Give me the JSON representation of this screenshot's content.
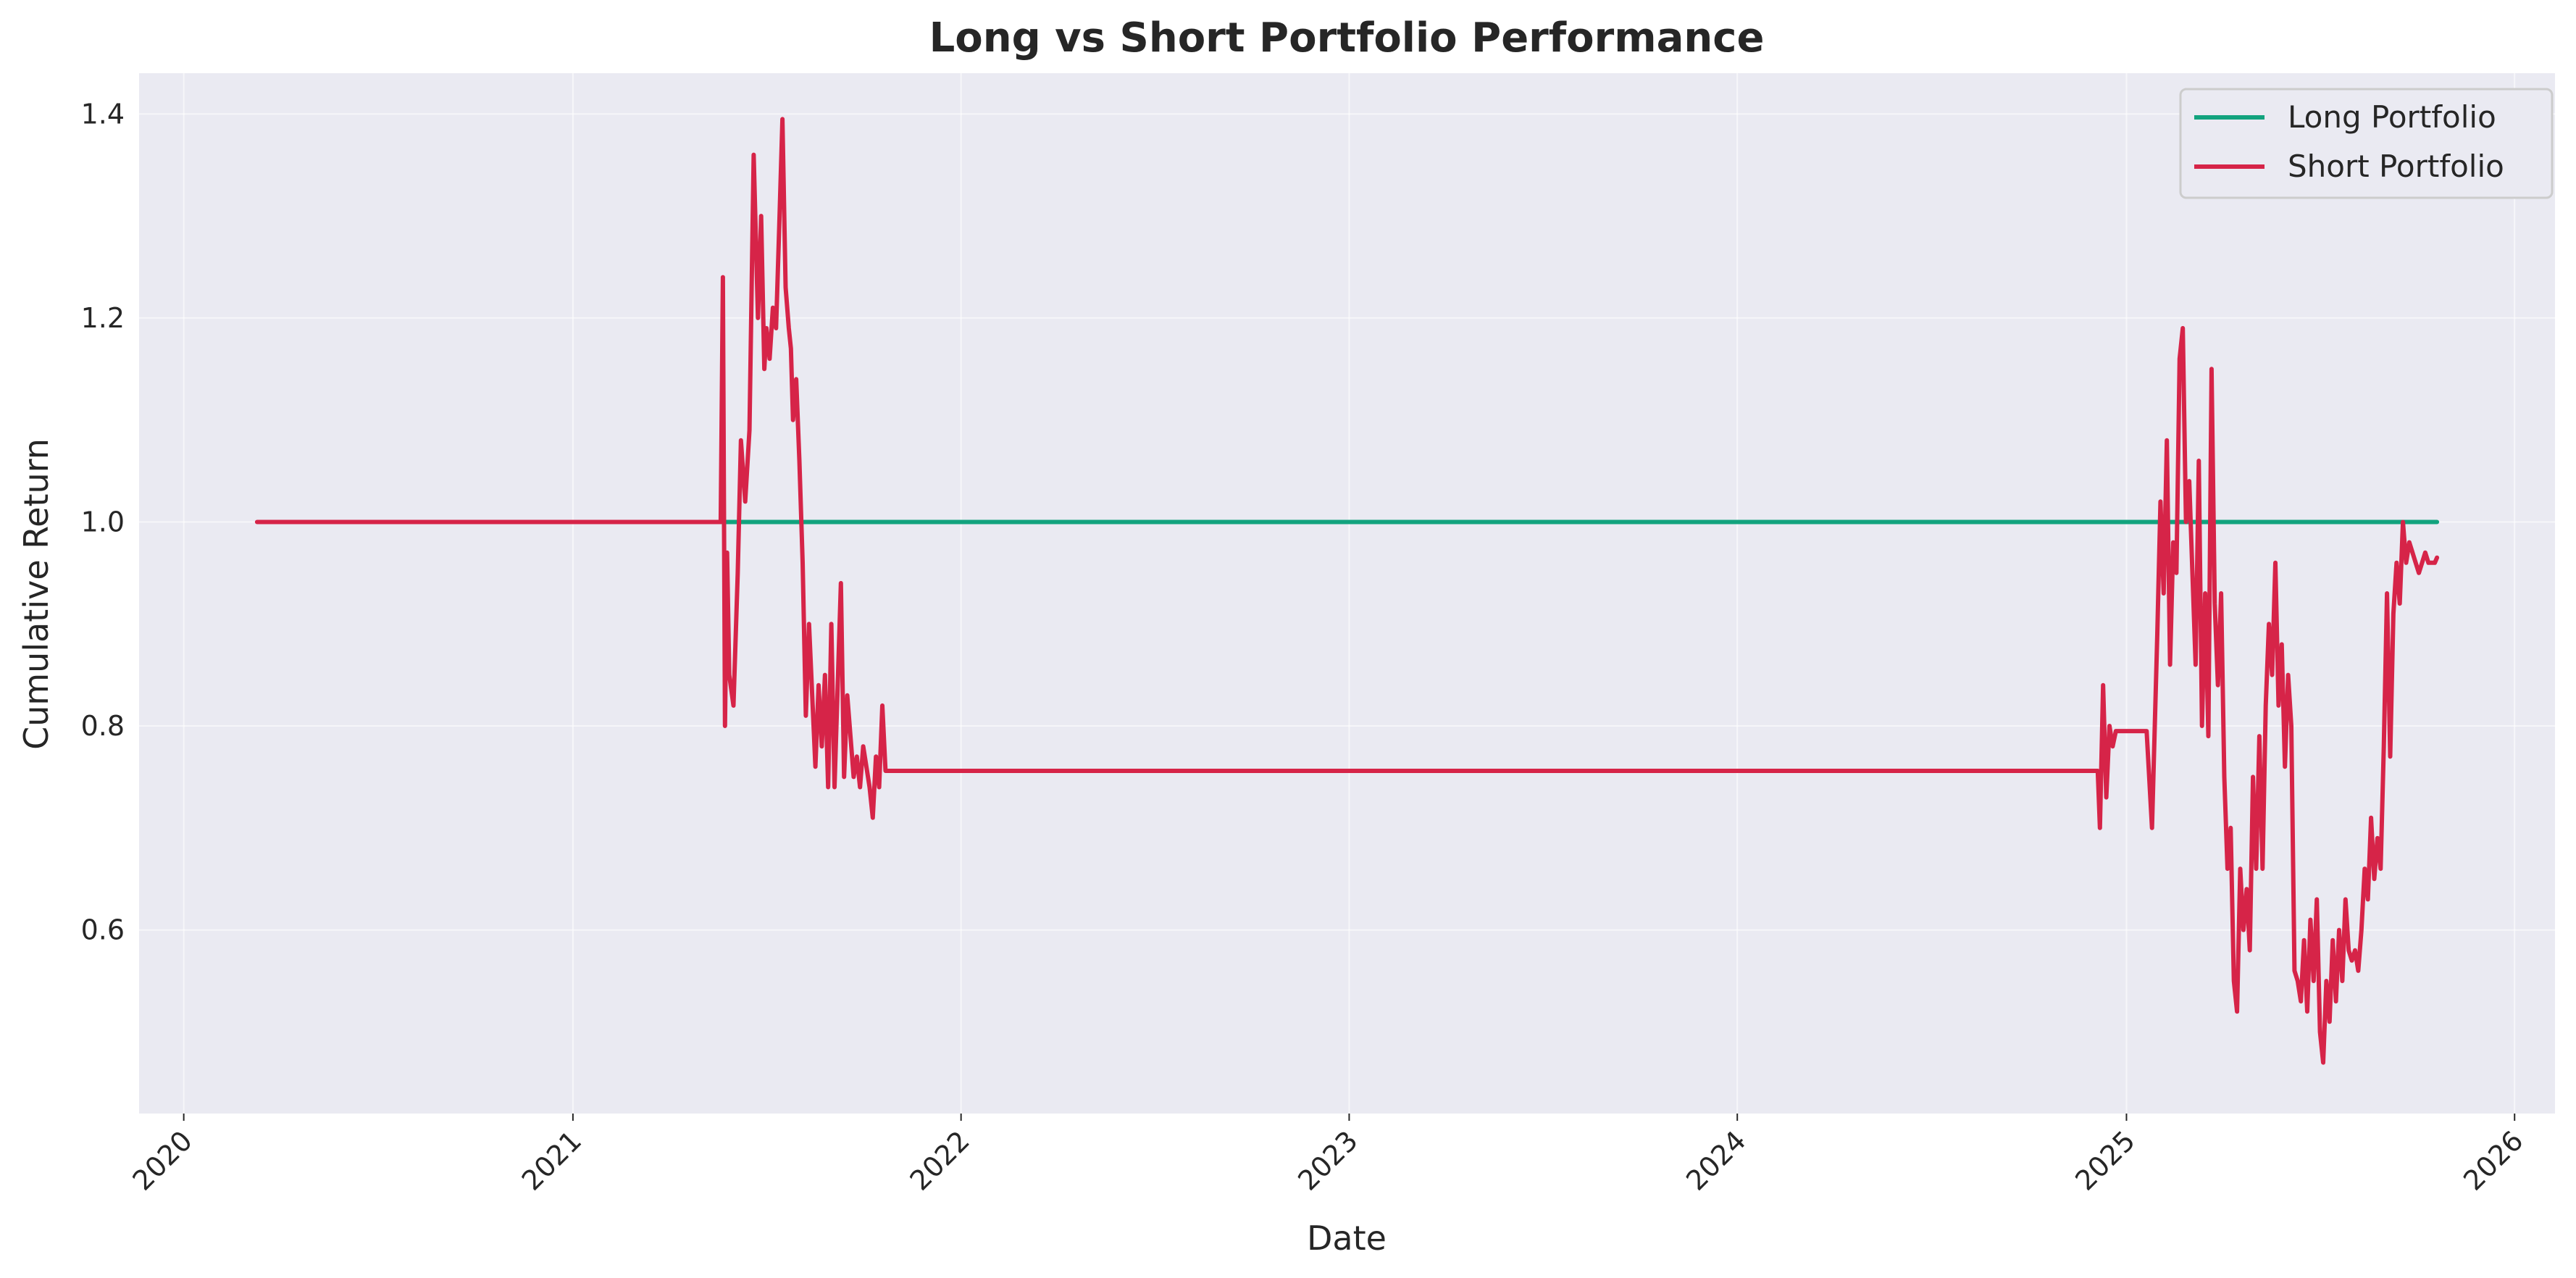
{
  "chart_data": {
    "type": "line",
    "title": "Long vs Short Portfolio Performance",
    "xlabel": "Date",
    "ylabel": "Cumulative Return",
    "x_axis_type": "date",
    "xlim": [
      "2019-11-20",
      "2026-02-08"
    ],
    "ylim": [
      0.42,
      1.44
    ],
    "x_ticks": [
      "2020-01-01",
      "2021-01-01",
      "2022-01-01",
      "2023-01-01",
      "2024-01-01",
      "2025-01-01",
      "2026-01-01"
    ],
    "x_tick_labels": [
      "2020",
      "2021",
      "2022",
      "2023",
      "2024",
      "2025",
      "2026"
    ],
    "y_ticks": [
      0.6,
      0.8,
      1.0,
      1.2,
      1.4
    ],
    "y_tick_labels": [
      "0.6",
      "0.8",
      "1.0",
      "1.2",
      "1.4"
    ],
    "grid": true,
    "legend": "top-right",
    "background_color": "#eaeaf2",
    "series": [
      {
        "name": "Long Portfolio",
        "color": "#12a37e",
        "x": [
          "2021-05-20",
          "2025-10-20"
        ],
        "y": [
          1.0,
          1.0
        ]
      },
      {
        "name": "Short Portfolio",
        "color": "#d62448",
        "x": [
          "2020-03-10",
          "2021-05-20",
          "2021-05-22",
          "2021-05-24",
          "2021-05-26",
          "2021-05-28",
          "2021-06-01",
          "2021-06-05",
          "2021-06-08",
          "2021-06-12",
          "2021-06-16",
          "2021-06-20",
          "2021-06-24",
          "2021-06-27",
          "2021-06-30",
          "2021-07-02",
          "2021-07-05",
          "2021-07-08",
          "2021-07-11",
          "2021-07-14",
          "2021-07-17",
          "2021-07-20",
          "2021-07-23",
          "2021-07-25",
          "2021-07-27",
          "2021-07-30",
          "2021-08-02",
          "2021-08-05",
          "2021-08-08",
          "2021-08-11",
          "2021-08-14",
          "2021-08-17",
          "2021-08-20",
          "2021-08-23",
          "2021-08-26",
          "2021-08-29",
          "2021-09-01",
          "2021-09-04",
          "2021-09-07",
          "2021-09-10",
          "2021-09-13",
          "2021-09-16",
          "2021-09-19",
          "2021-09-22",
          "2021-09-25",
          "2021-09-28",
          "2021-10-01",
          "2021-10-04",
          "2021-10-07",
          "2021-10-10",
          "2021-10-13",
          "2021-10-16",
          "2021-10-19",
          "2021-10-22",
          "2021-10-25",
          "2021-10-28",
          "2021-10-30",
          "2024-12-05",
          "2024-12-07",
          "2024-12-10",
          "2024-12-13",
          "2024-12-16",
          "2024-12-19",
          "2024-12-22",
          "2024-12-26",
          "2024-12-30",
          "2025-01-03",
          "2025-01-08",
          "2025-01-14",
          "2025-01-20",
          "2025-01-25",
          "2025-01-30",
          "2025-02-02",
          "2025-02-05",
          "2025-02-08",
          "2025-02-11",
          "2025-02-14",
          "2025-02-17",
          "2025-02-20",
          "2025-02-23",
          "2025-02-26",
          "2025-03-01",
          "2025-03-04",
          "2025-03-07",
          "2025-03-10",
          "2025-03-13",
          "2025-03-16",
          "2025-03-19",
          "2025-03-22",
          "2025-03-25",
          "2025-03-28",
          "2025-03-31",
          "2025-04-03",
          "2025-04-06",
          "2025-04-09",
          "2025-04-12",
          "2025-04-15",
          "2025-04-18",
          "2025-04-21",
          "2025-04-24",
          "2025-04-27",
          "2025-04-30",
          "2025-05-03",
          "2025-05-06",
          "2025-05-09",
          "2025-05-12",
          "2025-05-15",
          "2025-05-18",
          "2025-05-21",
          "2025-05-24",
          "2025-05-27",
          "2025-05-30",
          "2025-06-02",
          "2025-06-05",
          "2025-06-08",
          "2025-06-11",
          "2025-06-14",
          "2025-06-17",
          "2025-06-20",
          "2025-06-23",
          "2025-06-26",
          "2025-06-29",
          "2025-07-02",
          "2025-07-05",
          "2025-07-08",
          "2025-07-11",
          "2025-07-14",
          "2025-07-17",
          "2025-07-20",
          "2025-07-23",
          "2025-07-26",
          "2025-07-29",
          "2025-08-01",
          "2025-08-04",
          "2025-08-07",
          "2025-08-10",
          "2025-08-13",
          "2025-08-16",
          "2025-08-19",
          "2025-08-22",
          "2025-08-25",
          "2025-08-28",
          "2025-08-31",
          "2025-09-03",
          "2025-09-06",
          "2025-09-09",
          "2025-09-12",
          "2025-09-15",
          "2025-09-18",
          "2025-09-21",
          "2025-09-24",
          "2025-09-27",
          "2025-09-30",
          "2025-10-03",
          "2025-10-06",
          "2025-10-09",
          "2025-10-12",
          "2025-10-15",
          "2025-10-18",
          "2025-10-20"
        ],
        "y": [
          1.0,
          1.0,
          1.24,
          0.8,
          0.97,
          0.85,
          0.82,
          0.95,
          1.08,
          1.02,
          1.09,
          1.36,
          1.2,
          1.3,
          1.15,
          1.19,
          1.16,
          1.21,
          1.19,
          1.29,
          1.395,
          1.23,
          1.19,
          1.17,
          1.1,
          1.14,
          1.06,
          0.96,
          0.81,
          0.9,
          0.83,
          0.76,
          0.84,
          0.78,
          0.85,
          0.74,
          0.9,
          0.74,
          0.84,
          0.94,
          0.75,
          0.83,
          0.79,
          0.75,
          0.77,
          0.74,
          0.78,
          0.76,
          0.74,
          0.71,
          0.77,
          0.74,
          0.82,
          0.756,
          0.756,
          0.756,
          0.756,
          0.756,
          0.7,
          0.84,
          0.73,
          0.8,
          0.78,
          0.795,
          0.795,
          0.795,
          0.795,
          0.795,
          0.795,
          0.795,
          0.7,
          0.89,
          1.02,
          0.93,
          1.08,
          0.86,
          0.98,
          0.95,
          1.16,
          1.19,
          1.0,
          1.04,
          0.95,
          0.86,
          1.06,
          0.8,
          0.93,
          0.79,
          1.15,
          0.92,
          0.84,
          0.93,
          0.75,
          0.66,
          0.7,
          0.55,
          0.52,
          0.66,
          0.6,
          0.64,
          0.58,
          0.75,
          0.66,
          0.79,
          0.66,
          0.82,
          0.9,
          0.85,
          0.96,
          0.82,
          0.88,
          0.76,
          0.85,
          0.8,
          0.56,
          0.55,
          0.53,
          0.59,
          0.52,
          0.61,
          0.55,
          0.63,
          0.5,
          0.47,
          0.55,
          0.51,
          0.59,
          0.53,
          0.6,
          0.55,
          0.63,
          0.58,
          0.57,
          0.58,
          0.56,
          0.6,
          0.66,
          0.63,
          0.71,
          0.65,
          0.69,
          0.66,
          0.78,
          0.93,
          0.77,
          0.91,
          0.96,
          0.92,
          1.0,
          0.96,
          0.98,
          0.97,
          0.96,
          0.95,
          0.96,
          0.97,
          0.96,
          0.96,
          0.96,
          0.965
        ]
      }
    ]
  }
}
